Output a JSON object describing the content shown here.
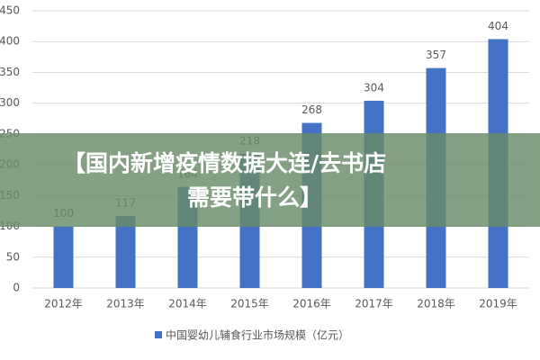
{
  "chart_data": {
    "type": "bar",
    "categories": [
      "2012年",
      "2013年",
      "2014年",
      "2015年",
      "2016年",
      "2017年",
      "2018年",
      "2019年"
    ],
    "series": [
      {
        "name": "中国婴幼儿辅食行业市场规模（亿元）",
        "color": "#4472c4",
        "values": [
          100,
          117,
          164,
          218,
          268,
          304,
          357,
          404
        ]
      }
    ],
    "ylim": [
      0,
      450
    ],
    "yticks": [
      0,
      50,
      100,
      150,
      200,
      250,
      300,
      350,
      400,
      450
    ],
    "grid": true,
    "annotation": [
      "【国内新增疫情数据大连/去书店",
      "需要带什么】"
    ]
  }
}
